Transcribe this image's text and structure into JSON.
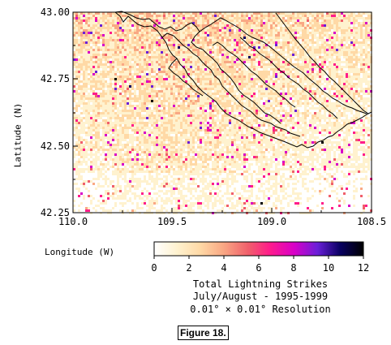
{
  "map": {
    "lat_ticks": [
      "43.00",
      "42.75",
      "42.50",
      "42.25"
    ],
    "lon_ticks": [
      "110.0",
      "109.5",
      "109.0",
      "108.5"
    ],
    "lat_label": "Latitude (N)",
    "lon_label": "Longitude (W)",
    "colors": [
      "#ffffff",
      "#fff2cf",
      "#ffd9a6",
      "#f9a884",
      "#f05f6b",
      "#ff1d8a",
      "#d800c8",
      "#6a1fd8",
      "#080060",
      "#000000"
    ]
  },
  "colorbar": {
    "ticks": [
      "0",
      "2",
      "4",
      "6",
      "8",
      "10",
      "12"
    ],
    "title_line1": "Total Lightning Strikes",
    "title_line2": "July/August - 1995-1999",
    "title_line3": "0.01° × 0.01° Resolution"
  },
  "figure_label": "Figure 18."
}
